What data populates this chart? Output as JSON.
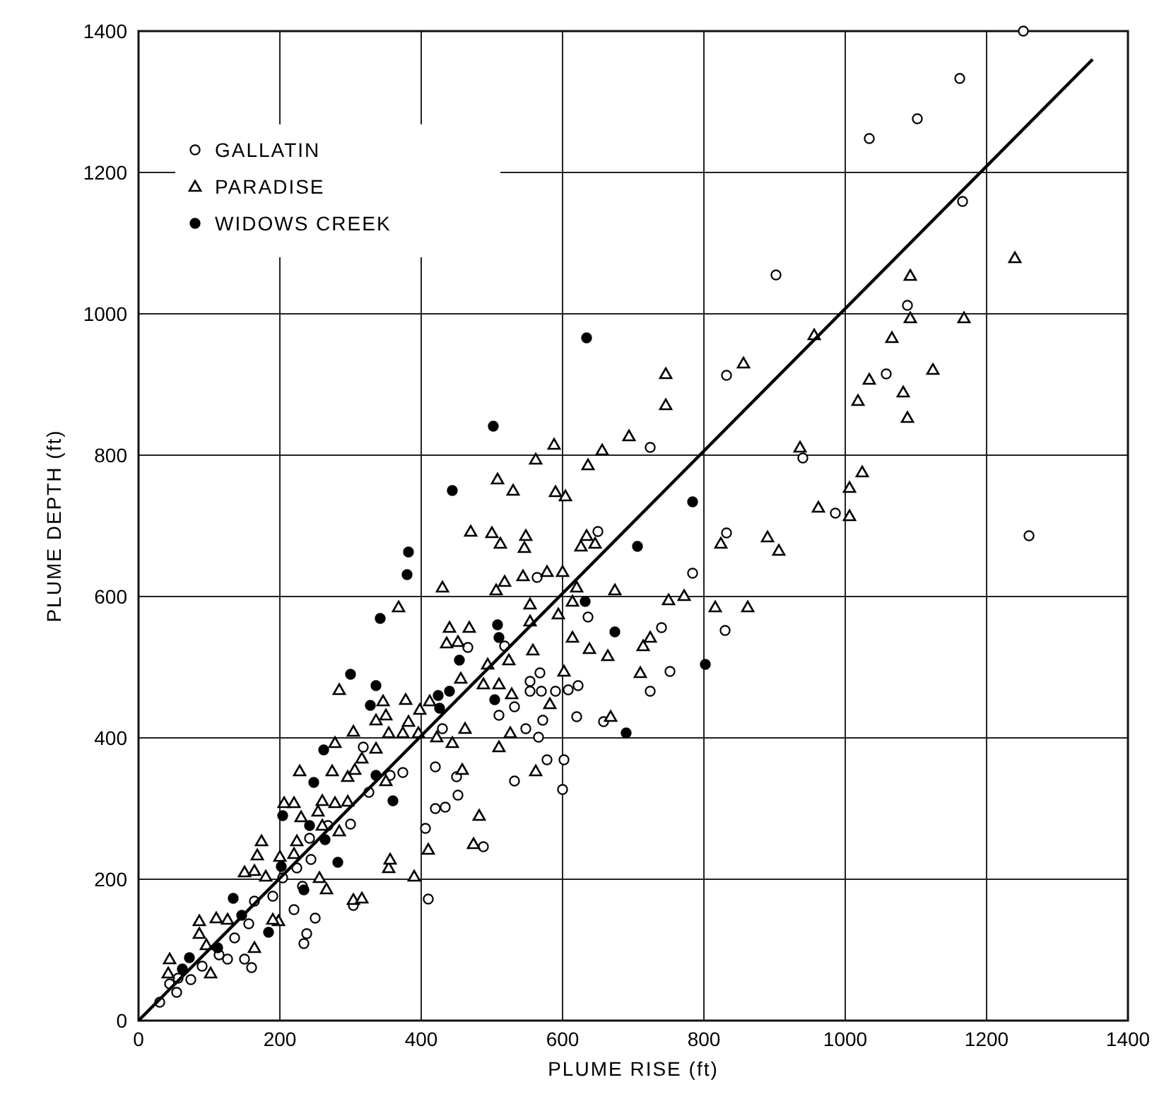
{
  "chart_data": {
    "type": "scatter",
    "xlabel": "PLUME RISE (ft)",
    "ylabel": "PLUME DEPTH (ft)",
    "xlim": [
      0,
      1400
    ],
    "ylim": [
      0,
      1400
    ],
    "xticks": [
      0,
      200,
      400,
      600,
      800,
      1000,
      1200,
      1400
    ],
    "yticks": [
      0,
      200,
      400,
      600,
      800,
      1000,
      1200,
      1400
    ],
    "grid": true,
    "legend": "top left",
    "series": [
      {
        "name": "GALLATIN",
        "color": "#ffffff",
        "marker": "circle",
        "x": [
          1252,
          1162,
          1102,
          1034,
          1166,
          1088,
          1260,
          902,
          1058,
          940,
          986,
          832,
          724,
          650,
          832,
          784,
          564,
          636,
          740,
          830,
          752,
          724,
          466,
          518,
          568,
          554,
          554,
          570,
          590,
          608,
          622,
          532,
          510,
          572,
          620,
          658,
          548,
          566,
          430,
          578,
          602,
          600,
          532,
          420,
          450,
          452,
          420,
          434,
          406,
          488,
          410,
          318,
          356,
          374,
          326,
          268,
          300,
          242,
          224,
          244,
          304,
          232,
          204,
          190,
          164,
          220,
          250,
          238,
          234,
          156,
          136,
          150,
          160,
          126,
          114,
          90,
          74,
          54,
          44,
          30,
          56
        ],
        "values": [
          1400,
          1333,
          1276,
          1248,
          1159,
          1012,
          686,
          1055,
          915,
          796,
          718,
          913,
          811,
          692,
          690,
          633,
          627,
          571,
          556,
          552,
          494,
          466,
          528,
          530,
          492,
          480,
          466,
          466,
          466,
          468,
          474,
          444,
          432,
          425,
          430,
          423,
          413,
          401,
          413,
          369,
          369,
          327,
          339,
          359,
          345,
          319,
          300,
          302,
          272,
          246,
          172,
          387,
          347,
          351,
          323,
          276,
          278,
          258,
          216,
          228,
          163,
          190,
          202,
          176,
          169,
          157,
          145,
          123,
          109,
          137,
          117,
          87,
          75,
          87,
          93,
          77,
          58,
          40,
          52,
          26,
          60
        ]
      },
      {
        "name": "PARADISE",
        "color": "#ffffff",
        "marker": "triangle",
        "x": [
          956,
          1066,
          1092,
          1168,
          1034,
          1124,
          1082,
          1088,
          1018,
          856,
          936,
          1024,
          1006,
          962,
          1006,
          890,
          906,
          862,
          1240,
          1092,
          746,
          746,
          694,
          656,
          588,
          562,
          636,
          508,
          530,
          590,
          604,
          470,
          500,
          512,
          548,
          546,
          634,
          626,
          646,
          824,
          430,
          506,
          518,
          544,
          578,
          600,
          620,
          674,
          772,
          554,
          614,
          594,
          750,
          816,
          554,
          440,
          468,
          436,
          452,
          558,
          614,
          638,
          664,
          714,
          724,
          710,
          494,
          524,
          456,
          488,
          510,
          602,
          528,
          582,
          668,
          462,
          526,
          422,
          444,
          510,
          458,
          562,
          482,
          474,
          368,
          284,
          346,
          378,
          398,
          412,
          336,
          350,
          382,
          396,
          304,
          354,
          374,
          278,
          336,
          316,
          228,
          274,
          296,
          306,
          350,
          206,
          220,
          260,
          278,
          296,
          230,
          254,
          260,
          284,
          174,
          224,
          168,
          150,
          164,
          180,
          220,
          200,
          256,
          266,
          198,
          190,
          86,
          110,
          126,
          86,
          96,
          164,
          102,
          44,
          42,
          304,
          316,
          390,
          354,
          356,
          410
        ],
        "values": [
          970,
          966,
          994,
          994,
          907,
          921,
          889,
          853,
          877,
          930,
          811,
          776,
          754,
          726,
          714,
          684,
          665,
          585,
          1079,
          1054,
          915,
          871,
          827,
          807,
          815,
          794,
          786,
          766,
          750,
          748,
          742,
          692,
          690,
          675,
          686,
          669,
          686,
          671,
          675,
          675,
          613,
          609,
          621,
          629,
          635,
          635,
          613,
          609,
          601,
          589,
          593,
          575,
          595,
          585,
          565,
          556,
          556,
          534,
          536,
          524,
          542,
          526,
          516,
          530,
          542,
          492,
          504,
          510,
          484,
          476,
          476,
          494,
          462,
          448,
          430,
          413,
          407,
          401,
          393,
          387,
          355,
          353,
          290,
          250,
          585,
          468,
          452,
          454,
          440,
          452,
          425,
          432,
          423,
          407,
          409,
          407,
          407,
          393,
          385,
          371,
          353,
          353,
          345,
          355,
          339,
          308,
          308,
          311,
          308,
          310,
          288,
          296,
          276,
          268,
          254,
          254,
          234,
          210,
          212,
          204,
          236,
          232,
          202,
          186,
          141,
          143,
          141,
          145,
          143,
          123,
          107,
          103,
          67,
          87,
          67,
          171,
          173,
          204,
          216,
          228,
          242
        ]
      },
      {
        "name": "WIDOWS CREEK",
        "color": "#000000",
        "marker": "circle",
        "x": [
          634,
          502,
          444,
          382,
          380,
          784,
          706,
          632,
          674,
          802,
          690,
          508,
          510,
          454,
          424,
          440,
          426,
          504,
          342,
          300,
          336,
          328,
          262,
          248,
          336,
          360,
          204,
          242,
          264,
          282,
          202,
          234,
          134,
          146,
          184,
          112,
          72,
          62
        ],
        "values": [
          966,
          841,
          750,
          663,
          631,
          734,
          671,
          593,
          550,
          504,
          407,
          560,
          542,
          510,
          460,
          466,
          442,
          454,
          569,
          490,
          474,
          446,
          383,
          337,
          347,
          311,
          290,
          276,
          256,
          224,
          218,
          185,
          173,
          149,
          125,
          103,
          89,
          73
        ]
      },
      {
        "type": "line",
        "color": "#000000",
        "marker": "none",
        "line_style": "solid",
        "x": [
          0,
          1350
        ],
        "values": [
          0,
          1360
        ]
      }
    ]
  }
}
